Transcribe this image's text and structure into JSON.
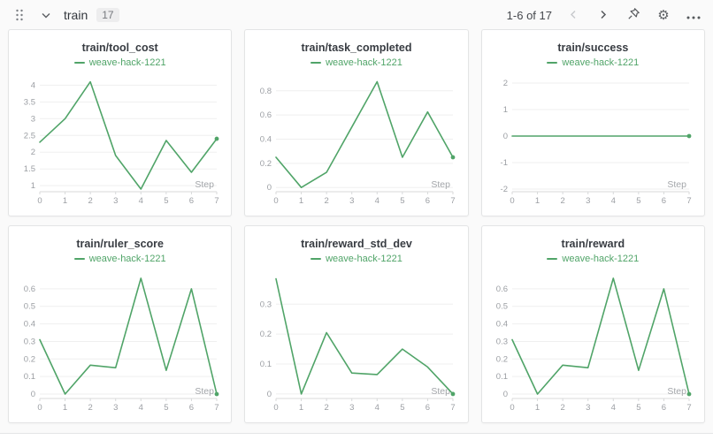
{
  "header": {
    "title": "train",
    "count": "17",
    "pagination": "1-6 of 17"
  },
  "colors": {
    "run_green": "#50a468",
    "panel_border": "#e3e4e5",
    "page_bg": "#fafafa",
    "tick_gray": "#9b9ea3"
  },
  "chart_data": [
    {
      "type": "line",
      "title": "train/tool_cost",
      "xlabel": "Step",
      "grid": true,
      "legend_position": "top",
      "xticks": [
        0,
        1,
        2,
        3,
        4,
        5,
        6,
        7
      ],
      "yticks": [
        1,
        1.5,
        2,
        2.5,
        3,
        3.5,
        4
      ],
      "xlim": [
        0,
        7
      ],
      "ylim": [
        0.82,
        4.3
      ],
      "series": [
        {
          "name": "weave-hack-1221",
          "color": "#50a468",
          "x": [
            0,
            1,
            2,
            3,
            4,
            5,
            6,
            7
          ],
          "y": [
            2.3,
            3.0,
            4.1,
            1.9,
            0.9,
            2.35,
            1.4,
            2.4
          ]
        }
      ]
    },
    {
      "type": "line",
      "title": "train/task_completed",
      "xlabel": "Step",
      "grid": true,
      "legend_position": "top",
      "xticks": [
        0,
        1,
        2,
        3,
        4,
        5,
        6,
        7
      ],
      "yticks": [
        0,
        0.2,
        0.4,
        0.6,
        0.8
      ],
      "xlim": [
        0,
        7
      ],
      "ylim": [
        -0.035,
        0.93
      ],
      "series": [
        {
          "name": "weave-hack-1221",
          "color": "#50a468",
          "x": [
            0,
            1,
            2,
            3,
            4,
            5,
            6,
            7
          ],
          "y": [
            0.25,
            0.0,
            0.125,
            0.5,
            0.875,
            0.25,
            0.625,
            0.25
          ]
        }
      ]
    },
    {
      "type": "line",
      "title": "train/success",
      "xlabel": "Step",
      "grid": true,
      "legend_position": "top",
      "xticks": [
        0,
        1,
        2,
        3,
        4,
        5,
        6,
        7
      ],
      "yticks": [
        -2,
        -1,
        0,
        1,
        2
      ],
      "xlim": [
        0,
        7
      ],
      "ylim": [
        -2.1,
        2.3
      ],
      "series": [
        {
          "name": "weave-hack-1221",
          "color": "#50a468",
          "x": [
            0,
            1,
            2,
            3,
            4,
            5,
            6,
            7
          ],
          "y": [
            0,
            0,
            0,
            0,
            0,
            0,
            0,
            0
          ]
        }
      ]
    },
    {
      "type": "line",
      "title": "train/ruler_score",
      "xlabel": "Step",
      "grid": true,
      "legend_position": "top",
      "xticks": [
        0,
        1,
        2,
        3,
        4,
        5,
        6,
        7
      ],
      "yticks": [
        0,
        0.1,
        0.2,
        0.3,
        0.4,
        0.5,
        0.6
      ],
      "xlim": [
        0,
        7
      ],
      "ylim": [
        -0.025,
        0.7
      ],
      "series": [
        {
          "name": "weave-hack-1221",
          "color": "#50a468",
          "x": [
            0,
            1,
            2,
            3,
            4,
            5,
            6,
            7
          ],
          "y": [
            0.31,
            0.0,
            0.165,
            0.15,
            0.66,
            0.135,
            0.6,
            0.0
          ]
        }
      ]
    },
    {
      "type": "line",
      "title": "train/reward_std_dev",
      "xlabel": "Step",
      "grid": true,
      "legend_position": "top",
      "xticks": [
        0,
        1,
        2,
        3,
        4,
        5,
        6,
        7
      ],
      "yticks": [
        0,
        0.1,
        0.2,
        0.3
      ],
      "xlim": [
        0,
        7
      ],
      "ylim": [
        -0.015,
        0.41
      ],
      "series": [
        {
          "name": "weave-hack-1221",
          "color": "#50a468",
          "x": [
            0,
            1,
            2,
            3,
            4,
            5,
            6,
            7
          ],
          "y": [
            0.385,
            0.0,
            0.205,
            0.07,
            0.065,
            0.15,
            0.09,
            0.0
          ]
        }
      ]
    },
    {
      "type": "line",
      "title": "train/reward",
      "xlabel": "Step",
      "grid": true,
      "legend_position": "top",
      "xticks": [
        0,
        1,
        2,
        3,
        4,
        5,
        6,
        7
      ],
      "yticks": [
        0,
        0.1,
        0.2,
        0.3,
        0.4,
        0.5,
        0.6
      ],
      "xlim": [
        0,
        7
      ],
      "ylim": [
        -0.025,
        0.7
      ],
      "series": [
        {
          "name": "weave-hack-1221",
          "color": "#50a468",
          "x": [
            0,
            1,
            2,
            3,
            4,
            5,
            6,
            7
          ],
          "y": [
            0.31,
            0.0,
            0.165,
            0.15,
            0.66,
            0.135,
            0.6,
            0.0
          ]
        }
      ]
    }
  ]
}
